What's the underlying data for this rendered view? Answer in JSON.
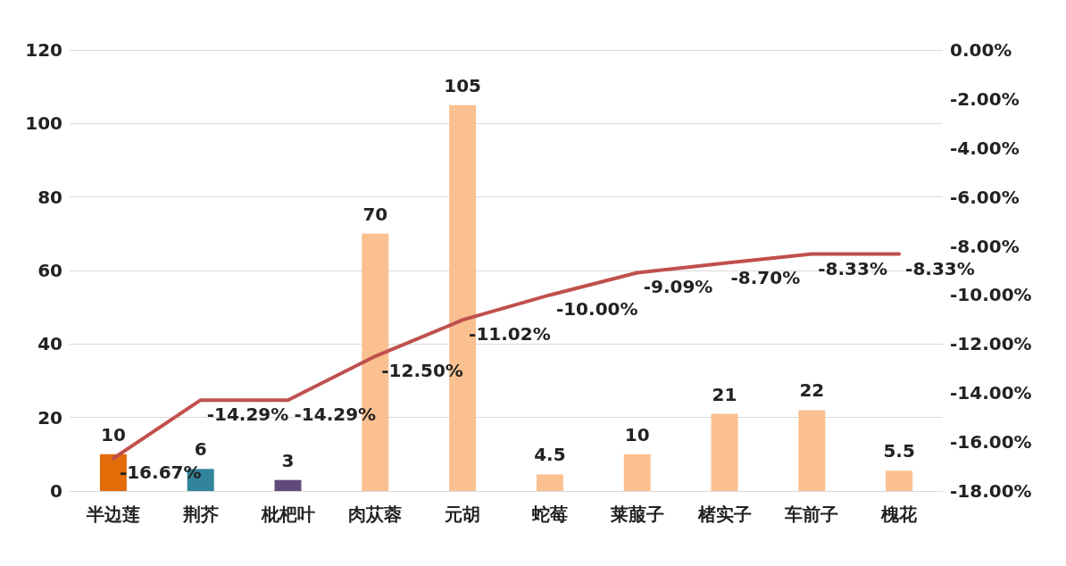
{
  "chart_data": {
    "type": "bar",
    "categories": [
      "半边莲",
      "荆芥",
      "枇杷叶",
      "肉苁蓉",
      "元胡",
      "蛇莓",
      "莱菔子",
      "楮实子",
      "车前子",
      "槐花"
    ],
    "series": [
      {
        "colors": [
          "#e36c09",
          "#31849b",
          "#604a7b",
          "#fac090",
          "#fac090",
          "#fac090",
          "#fac090",
          "#fac090",
          "#fac090",
          "#fac090"
        ],
        "values": [
          10,
          6,
          3,
          70,
          105,
          4.5,
          10,
          21,
          22,
          5.5
        ],
        "value_labels": [
          "10",
          "6",
          "3",
          "70",
          "105",
          "4.5",
          "10",
          "21",
          "22",
          "5.5"
        ]
      },
      {
        "type": "line",
        "axis": "y2",
        "color": "#c0504d",
        "values": [
          -16.67,
          -14.29,
          -14.29,
          -12.5,
          -11.02,
          -10,
          -9.09,
          -8.7,
          -8.33,
          -8.33
        ],
        "value_labels": [
          "-16.67%",
          "-14.29%",
          "-14.29%",
          "-12.50%",
          "-11.02%",
          "-10.00%",
          "-9.09%",
          "-8.70%",
          "-8.33%",
          "-8.33%"
        ]
      }
    ],
    "ylim": [
      0,
      120
    ],
    "yticks": [
      0,
      20,
      40,
      60,
      80,
      100,
      120
    ],
    "y2lim": [
      -18,
      0
    ],
    "y2ticks": [
      {
        "value": -18,
        "label": "-18.00%"
      },
      {
        "value": -16,
        "label": "-16.00%"
      },
      {
        "value": -14,
        "label": "-14.00%"
      },
      {
        "value": -12,
        "label": "-12.00%"
      },
      {
        "value": -10,
        "label": "-10.00%"
      },
      {
        "value": -8,
        "label": "-8.00%"
      },
      {
        "value": -6,
        "label": "-6.00%"
      },
      {
        "value": -4,
        "label": "-4.00%"
      },
      {
        "value": -2,
        "label": "-2.00%"
      },
      {
        "value": 0,
        "label": "0.00%"
      }
    ],
    "grid": "y",
    "marker": "none",
    "line_style": "solid"
  }
}
